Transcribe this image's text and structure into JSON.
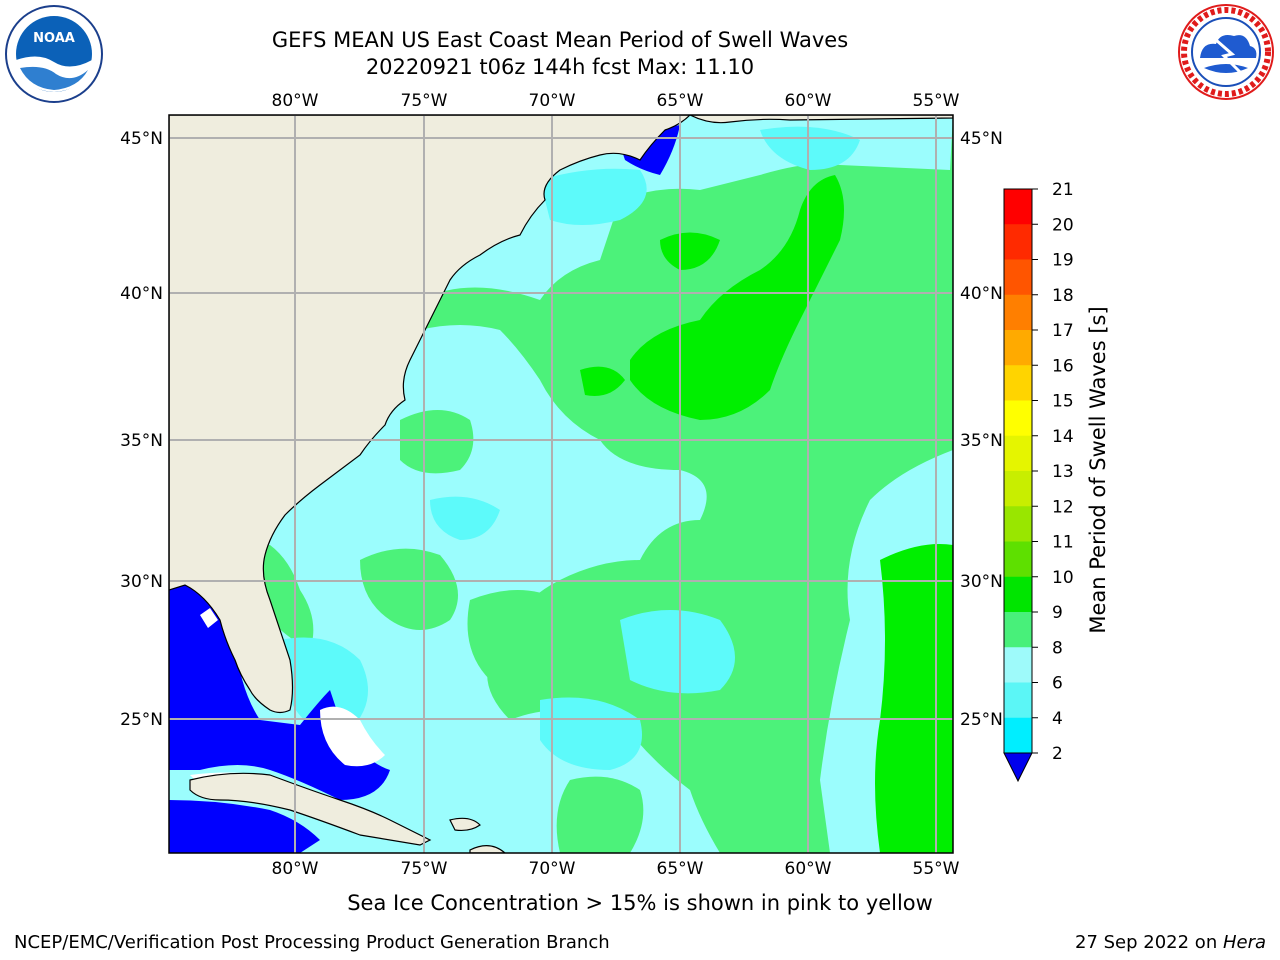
{
  "title": {
    "line1": "GEFS MEAN US East Coast Mean Period of Swell Waves",
    "line2": "20220921 t06z 144h fcst   Max: 11.10"
  },
  "logos": {
    "left": "noaa-logo",
    "right": "national-weather-service-logo",
    "left_text": "NOAA",
    "left_ring_text": "NATIONAL OCEANIC AND ATMOSPHERIC ADMINISTRATION · U.S. DEPARTMENT OF COMMERCE",
    "right_ring_text": "NATIONAL WEATHER SERVICE"
  },
  "map": {
    "lon_labels": [
      "80°W",
      "75°W",
      "70°W",
      "65°W",
      "60°W",
      "55°W"
    ],
    "lat_labels": [
      "45°N",
      "40°N",
      "35°N",
      "30°N",
      "25°N"
    ],
    "colors": {
      "land": "#efedde",
      "ocean_9_10": "#9bfdfd",
      "ocean_8_9": "#5dfafa",
      "ocean_10_11": "#4cf27a",
      "ocean_11_12": "#00ef00",
      "ocean_2_4": "#0000ff",
      "grid": "#b0b0b0"
    }
  },
  "colorbar": {
    "label": "Mean Period of Swell Waves [s]",
    "ticks": [
      "21",
      "20",
      "19",
      "18",
      "17",
      "16",
      "15",
      "14",
      "13",
      "12",
      "11",
      "10",
      "9",
      "8",
      "6",
      "4",
      "2"
    ],
    "colors": [
      "#ff0000",
      "#ff2a00",
      "#ff5500",
      "#ff7f00",
      "#ffaa00",
      "#ffd400",
      "#ffff00",
      "#e5f500",
      "#c8ee00",
      "#99e600",
      "#5ee000",
      "#00e500",
      "#48f07a",
      "#9efafa",
      "#5bf6f6",
      "#00eeff",
      "#0080ff",
      "#0000ee"
    ]
  },
  "footer": {
    "note": "Sea Ice Concentration > 15% is shown in pink to yellow",
    "left": "NCEP/EMC/Verification Post Processing Product Generation Branch",
    "right_prefix": "27 Sep 2022 on ",
    "right_host": "Hera"
  }
}
